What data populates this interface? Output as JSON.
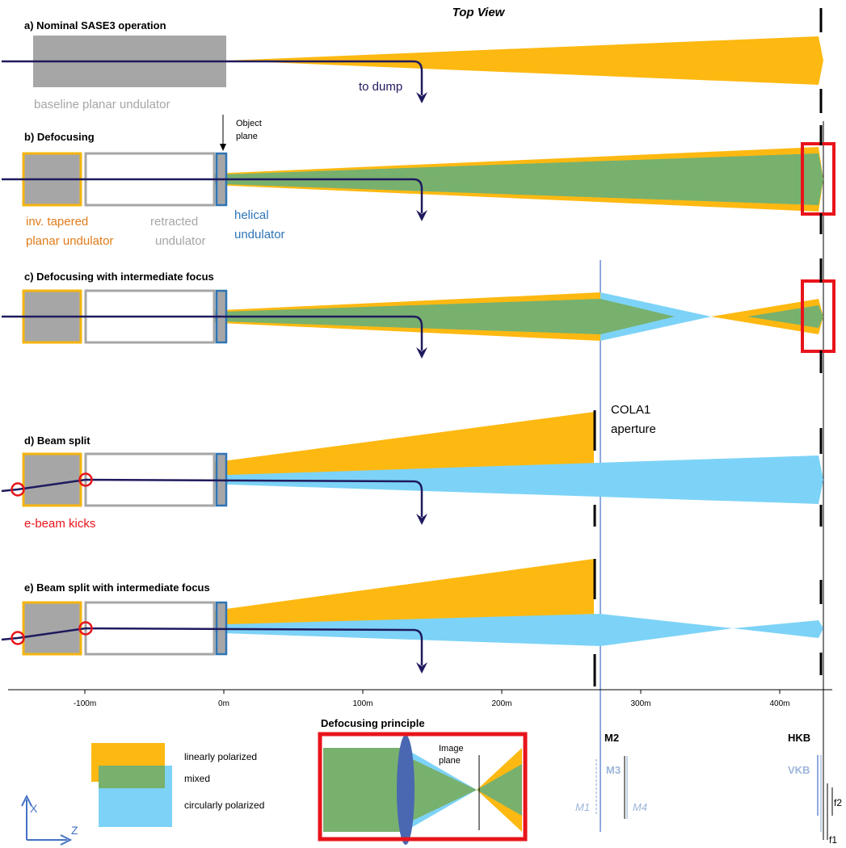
{
  "title": "Top View",
  "colors": {
    "linear": "#FDB912",
    "mixed": "#78B06E",
    "circular": "#7DD3F7",
    "undulator_gray": "#A6A6A6",
    "tapered_orange": "#F5B50F",
    "helical_blue": "#2E75B6",
    "ebeam": "#1F1A5E",
    "highlight_red": "#E8141B",
    "axis_blue": "#4472C4",
    "mirror_light": "#9DB5DA"
  },
  "panels": {
    "a": {
      "label": "a) Nominal SASE3 operation",
      "undulator_label": "baseline planar undulator",
      "dump_label": "to dump"
    },
    "b": {
      "label": "b) Defocusing",
      "object_plane_line1": "Object",
      "object_plane_line2": "plane",
      "tapered_line1": "inv. tapered",
      "tapered_line2": "planar undulator",
      "retracted_line1": "retracted",
      "retracted_line2": "undulator",
      "helical_line1": "helical",
      "helical_line2": "undulator"
    },
    "c": {
      "label": "c) Defocusing  with intermediate focus"
    },
    "d": {
      "label": "d) Beam split",
      "cola_line1": "COLA1",
      "cola_line2": "aperture",
      "kicks_label": "e-beam kicks"
    },
    "e": {
      "label": "e) Beam split with intermediate focus"
    }
  },
  "axis": {
    "ticks": [
      {
        "label": "-100m",
        "value": -100
      },
      {
        "label": "0m",
        "value": 0
      },
      {
        "label": "100m",
        "value": 100
      },
      {
        "label": "200m",
        "value": 200
      },
      {
        "label": "300m",
        "value": 300
      },
      {
        "label": "400m",
        "value": 400
      }
    ]
  },
  "legend": {
    "linear": "linearly polarized",
    "mixed": "mixed",
    "circular": "circularly polarized"
  },
  "coords": {
    "x": "X",
    "z": "Z"
  },
  "principle": {
    "title": "Defocusing principle",
    "image_line1": "Image",
    "image_line2": "plane"
  },
  "optics": {
    "m2": "M2",
    "m3": "M3",
    "m1": "M1",
    "m4": "M4",
    "hkb": "HKB",
    "vkb": "VKB",
    "f1": "f1",
    "f2": "f2"
  }
}
